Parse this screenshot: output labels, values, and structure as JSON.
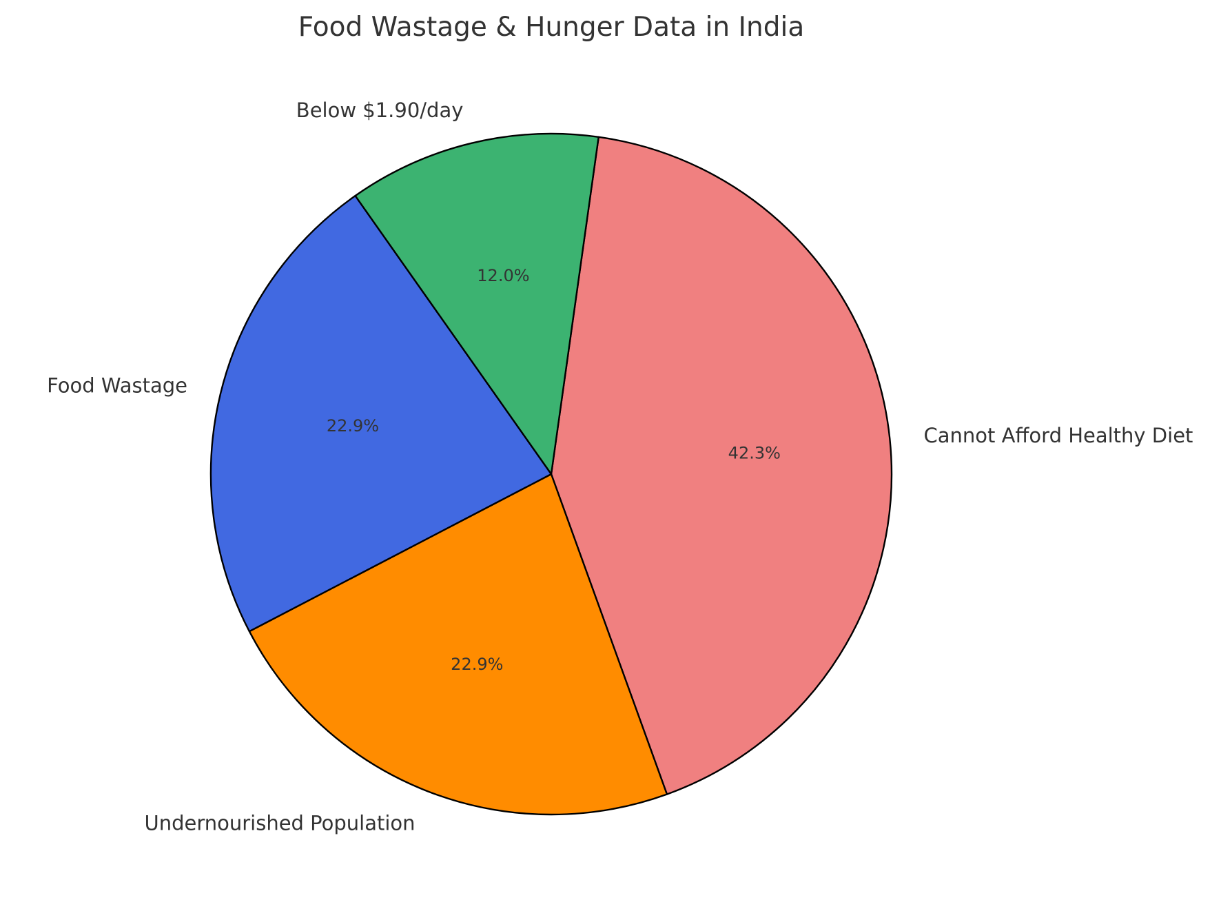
{
  "chart_data": {
    "type": "pie",
    "title": "Food Wastage & Hunger Data in India",
    "categories": [
      "Cannot Afford Healthy Diet",
      "Undernourished Population",
      "Food Wastage",
      "Below $1.90/day"
    ],
    "values": [
      42.3,
      22.9,
      22.9,
      12.0
    ],
    "percent_labels": [
      "42.3%",
      "22.9%",
      "22.9%",
      "12.0%"
    ],
    "colors": [
      "#F08080",
      "#FF8C00",
      "#4169E1",
      "#3CB371"
    ],
    "edge_color": "#000000",
    "start_angle_deg": 82,
    "direction": "clockwise",
    "legend": "none"
  }
}
